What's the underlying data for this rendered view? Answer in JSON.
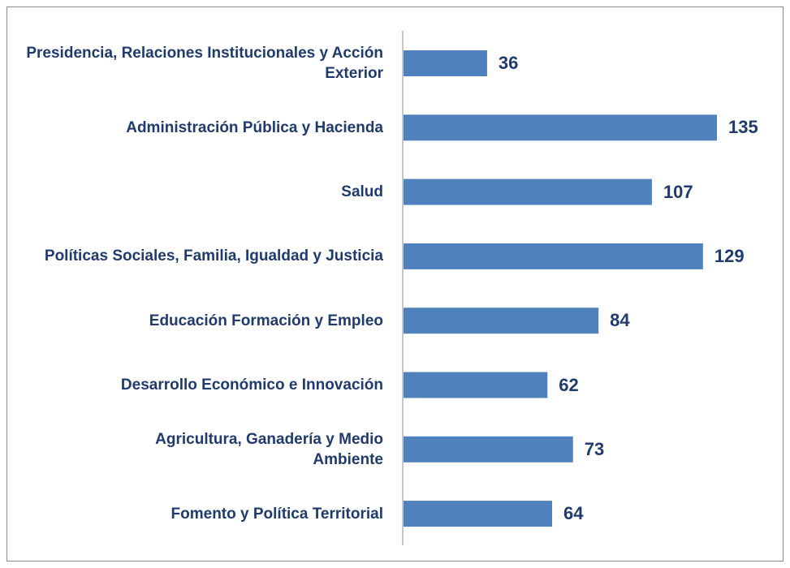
{
  "chart_data": {
    "type": "bar",
    "orientation": "horizontal",
    "categories": [
      "Presidencia, Relaciones Institucionales y Acción Exterior",
      "Administración Pública y Hacienda",
      "Salud",
      "Políticas Sociales, Familia, Igualdad y Justicia",
      "Educación Formación y Empleo",
      "Desarrollo Económico e Innovación",
      "Agricultura, Ganadería y Medio Ambiente",
      "Fomento y Política Territorial"
    ],
    "values": [
      36,
      135,
      107,
      129,
      84,
      62,
      73,
      64
    ],
    "color": "#4f81bd"
  }
}
